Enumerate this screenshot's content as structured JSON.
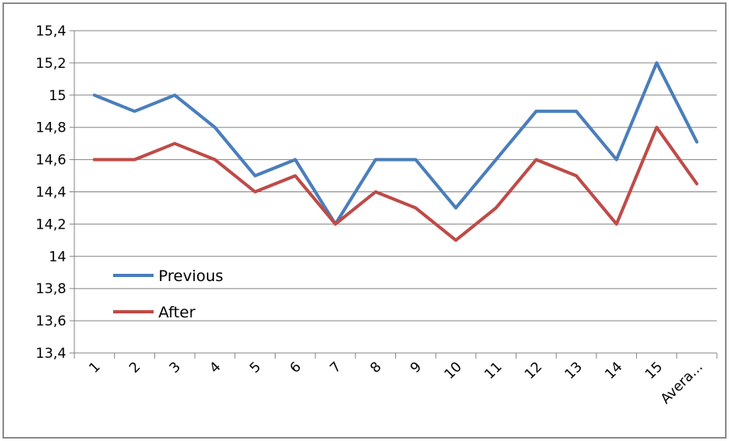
{
  "chart_data": {
    "type": "line",
    "categories": [
      "1",
      "2",
      "3",
      "4",
      "5",
      "6",
      "7",
      "8",
      "9",
      "10",
      "11",
      "12",
      "13",
      "14",
      "15",
      "Avera..."
    ],
    "series": [
      {
        "name": "Previous",
        "color": "#4a7ebb",
        "values": [
          15.0,
          14.9,
          15.0,
          14.8,
          14.5,
          14.6,
          14.2,
          14.6,
          14.6,
          14.3,
          14.6,
          14.9,
          14.9,
          14.6,
          15.2,
          14.71
        ]
      },
      {
        "name": "After",
        "color": "#be4b48",
        "values": [
          14.6,
          14.6,
          14.7,
          14.6,
          14.4,
          14.5,
          14.2,
          14.4,
          14.3,
          14.1,
          14.3,
          14.6,
          14.5,
          14.2,
          14.8,
          14.45
        ]
      }
    ],
    "ylim": [
      13.4,
      15.4
    ],
    "yticks": [
      "13,4",
      "13,6",
      "13,8",
      "14",
      "14,2",
      "14,4",
      "14,6",
      "14,8",
      "15",
      "15,2",
      "15,4"
    ],
    "ytick_values": [
      13.4,
      13.6,
      13.8,
      14.0,
      14.2,
      14.4,
      14.6,
      14.8,
      15.0,
      15.2,
      15.4
    ],
    "grid": true,
    "legend": "inside-bottom-left"
  }
}
